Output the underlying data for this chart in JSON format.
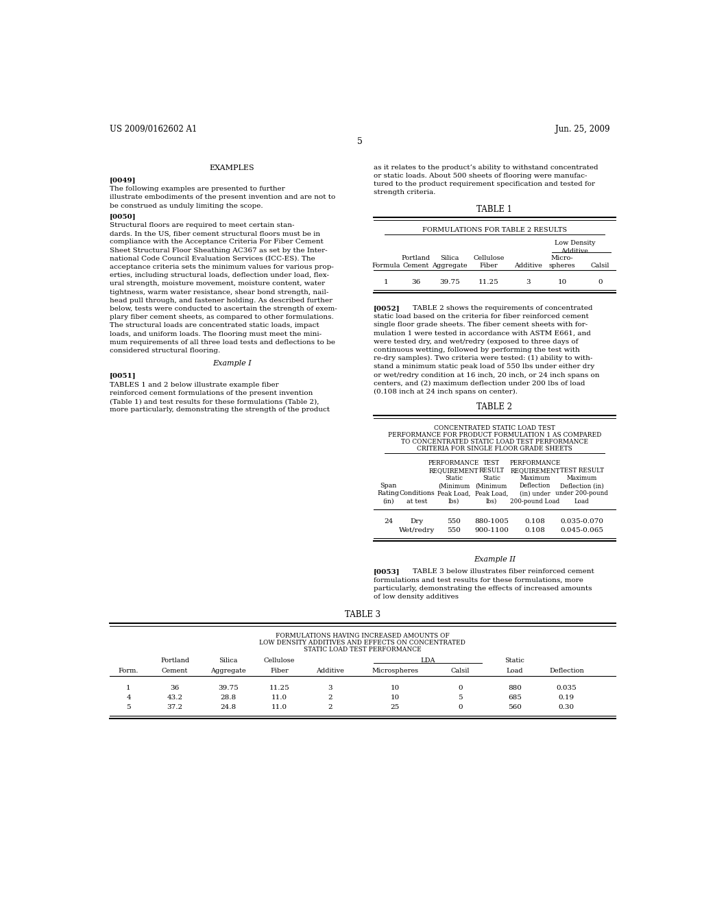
{
  "background_color": "#ffffff",
  "header_left": "US 2009/0162602 A1",
  "header_right": "Jun. 25, 2009",
  "page_number": "5"
}
